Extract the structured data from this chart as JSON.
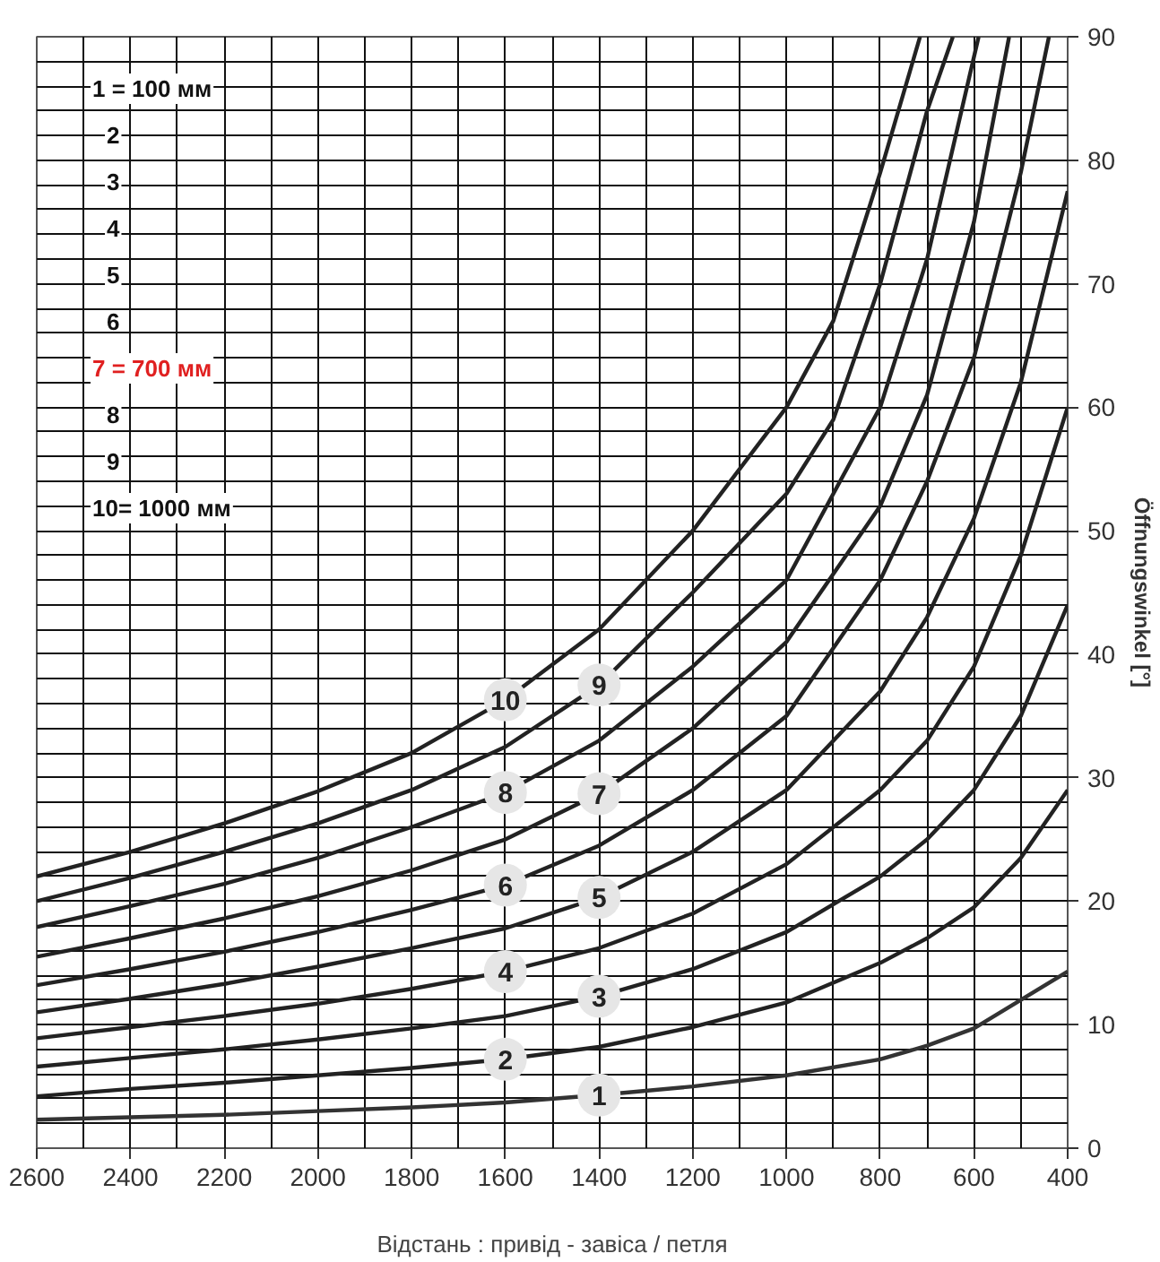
{
  "chart_data": {
    "type": "line",
    "xlabel": "Відстань : привід - завіса / петля",
    "ylabel": "Öffnungswinkel [°]",
    "xlim": [
      2600,
      400
    ],
    "ylim": [
      0,
      90
    ],
    "xticks": [
      2600,
      2400,
      2200,
      2000,
      1800,
      1600,
      1400,
      1200,
      1000,
      800,
      600,
      400
    ],
    "yticks": [
      0,
      10,
      20,
      30,
      40,
      50,
      60,
      70,
      80,
      90
    ],
    "grid": true,
    "line_style": "solid",
    "series": [
      {
        "name": "1",
        "color": "#333333",
        "x": [
          2600,
          2400,
          2200,
          2000,
          1800,
          1600,
          1400,
          1200,
          1000,
          800,
          700,
          600,
          500,
          400
        ],
        "values": [
          2.3,
          2.5,
          2.7,
          3.0,
          3.3,
          3.7,
          4.3,
          5.0,
          5.9,
          7.2,
          8.3,
          9.7,
          12,
          14.3
        ]
      },
      {
        "color": "#222222",
        "x": [
          2600,
          2400,
          2200,
          2000,
          1800,
          1600,
          1400,
          1200,
          1000,
          800,
          700,
          600,
          500,
          400
        ],
        "name": "2",
        "values": [
          4.2,
          4.8,
          5.3,
          5.9,
          6.5,
          7.2,
          8.2,
          9.8,
          11.8,
          15,
          17,
          19.5,
          23.5,
          29
        ]
      },
      {
        "color": "#222222",
        "x": [
          2600,
          2400,
          2200,
          2000,
          1800,
          1600,
          1400,
          1200,
          1000,
          800,
          700,
          600,
          500,
          400
        ],
        "name": "3",
        "values": [
          6.6,
          7.3,
          8.0,
          8.8,
          9.7,
          10.7,
          12.3,
          14.5,
          17.5,
          22,
          25,
          29,
          35,
          44
        ]
      },
      {
        "color": "#222222",
        "x": [
          2600,
          2400,
          2200,
          2000,
          1800,
          1600,
          1400,
          1200,
          1000,
          800,
          700,
          600,
          500,
          400
        ],
        "name": "4",
        "values": [
          8.9,
          9.8,
          10.7,
          11.7,
          12.9,
          14.3,
          16.2,
          19,
          23,
          29,
          33,
          39,
          48,
          60
        ]
      },
      {
        "color": "#222222",
        "x": [
          2600,
          2400,
          2200,
          2000,
          1800,
          1600,
          1400,
          1200,
          1000,
          800,
          700,
          600,
          500,
          400
        ],
        "name": "5",
        "values": [
          11.0,
          12.1,
          13.3,
          14.7,
          16.2,
          17.8,
          20.3,
          24,
          29,
          37,
          43,
          51,
          62,
          77.5
        ]
      },
      {
        "color": "#222222",
        "x": [
          2600,
          2400,
          2200,
          2000,
          1800,
          1600,
          1400,
          1200,
          1000,
          800,
          700,
          600,
          500,
          440
        ],
        "name": "6",
        "values": [
          13.2,
          14.5,
          15.9,
          17.5,
          19.3,
          21.3,
          24.5,
          29,
          35,
          46,
          54,
          64,
          79,
          90
        ]
      },
      {
        "color": "#222222",
        "x": [
          2600,
          2400,
          2200,
          2000,
          1800,
          1600,
          1400,
          1200,
          1000,
          800,
          700,
          600,
          525
        ],
        "name": "7",
        "values": [
          15.5,
          17.0,
          18.6,
          20.4,
          22.5,
          25,
          28.7,
          34,
          41,
          52,
          61,
          75,
          90
        ]
      },
      {
        "color": "#222222",
        "x": [
          2600,
          2400,
          2200,
          2000,
          1800,
          1600,
          1400,
          1200,
          1000,
          800,
          700,
          590
        ],
        "name": "8",
        "values": [
          17.9,
          19.6,
          21.4,
          23.5,
          26,
          28.8,
          33,
          39,
          46,
          60,
          72,
          90
        ]
      },
      {
        "color": "#222222",
        "x": [
          2600,
          2400,
          2200,
          2000,
          1800,
          1600,
          1400,
          1200,
          1000,
          900,
          800,
          700,
          645
        ],
        "name": "9",
        "values": [
          20.0,
          21.9,
          24,
          26.3,
          29,
          32.5,
          37.5,
          45,
          53,
          59,
          70,
          84,
          90
        ]
      },
      {
        "color": "#222222",
        "x": [
          2600,
          2400,
          2200,
          2000,
          1800,
          1600,
          1400,
          1200,
          1000,
          900,
          800,
          715
        ],
        "name": "10",
        "values": [
          22.0,
          24,
          26.3,
          28.9,
          32,
          36.3,
          42,
          50,
          60,
          67,
          79,
          90
        ]
      }
    ],
    "annotations": [
      "1 = 100 мм",
      "2",
      "3",
      "4",
      "5",
      "6",
      "7 = 700 мм",
      "8",
      "9",
      "10= 1000 мм"
    ]
  }
}
